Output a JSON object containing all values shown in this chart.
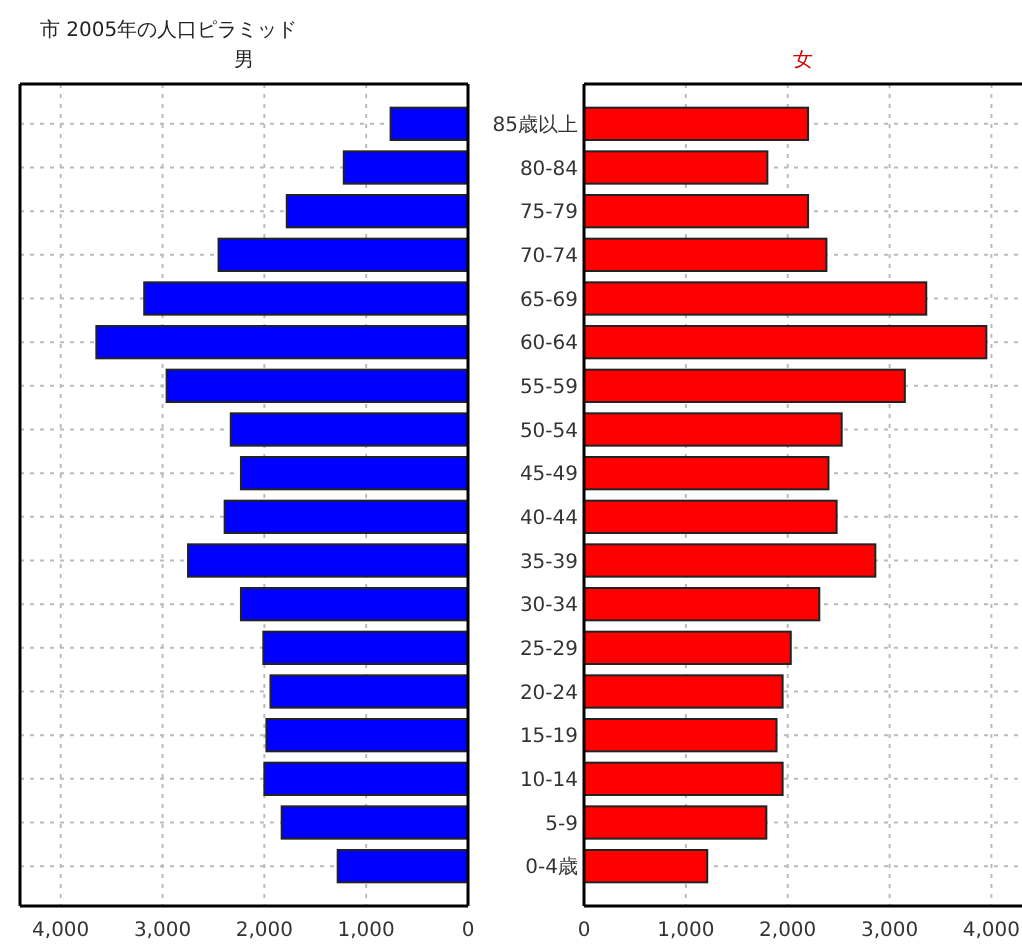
{
  "chart_data": [
    {
      "type": "bar",
      "orientation": "horizontal",
      "title": "市 2005年の人口ピラミッド",
      "subtitle": "男",
      "categories": [
        null,
        null,
        null,
        null,
        null,
        null,
        null,
        null,
        null,
        null,
        null,
        null,
        null,
        null,
        null,
        null,
        null,
        null
      ],
      "values": [
        760,
        1220,
        1780,
        2450,
        3180,
        3650,
        2960,
        2330,
        2230,
        2390,
        2750,
        2230,
        2010,
        1940,
        1980,
        2000,
        1830,
        1280
      ],
      "color": "#0000ff",
      "xlim": [
        4400,
        0
      ],
      "xticks": [
        {
          "value": 4000,
          "label": "4,000"
        },
        {
          "value": 3000,
          "label": "3,000"
        },
        {
          "value": 2000,
          "label": "2,000"
        },
        {
          "value": 1000,
          "label": "1,000"
        },
        0
      ],
      "grid": true
    },
    {
      "type": "bar",
      "orientation": "horizontal",
      "title": "女",
      "categories": [
        "85歳以上",
        "80-84",
        "75-79",
        "70-74",
        "65-69",
        "60-64",
        "55-59",
        "50-54",
        "45-49",
        "40-44",
        "35-39",
        "30-34",
        "25-29",
        "20-24",
        "15-19",
        "10-14",
        "5-9",
        "0-4歳"
      ],
      "values": [
        2200,
        1800,
        2200,
        2380,
        3360,
        3950,
        3150,
        2530,
        2400,
        2480,
        2860,
        2310,
        2030,
        1950,
        1890,
        1950,
        1790,
        1210
      ],
      "color": "#ff0000",
      "xlim": [
        0,
        4300
      ],
      "xticks": [
        0,
        {
          "value": 1000,
          "label": "1,000"
        },
        {
          "value": 2000,
          "label": "2,000"
        },
        {
          "value": 3000,
          "label": "3,000"
        },
        {
          "value": 4000,
          "label": "4,000"
        }
      ],
      "grid": true
    }
  ]
}
